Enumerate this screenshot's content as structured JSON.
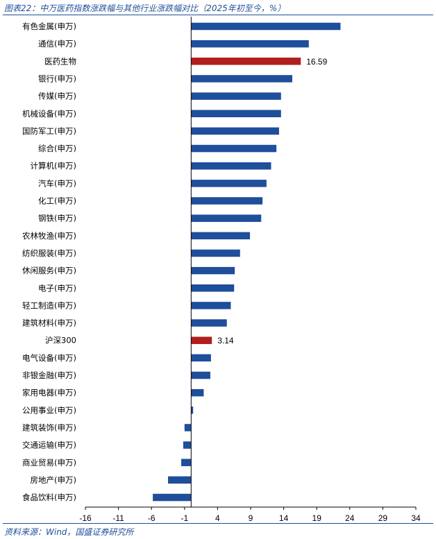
{
  "header": {
    "title": "图表22：中万医药指数涨跌幅与其他行业涨跌幅对比（2025年初至今，%）"
  },
  "footer": {
    "source": "资料来源：Wind，国盛证券研究所"
  },
  "chart_data": {
    "type": "bar",
    "orientation": "horizontal",
    "title": "图表22：中万医药指数涨跌幅与其他行业涨跌幅对比（2025年初至今，%）",
    "xlim": [
      -16,
      34
    ],
    "xticks": [
      -16,
      -11,
      -6,
      -1,
      4,
      9,
      14,
      19,
      24,
      29,
      34
    ],
    "grid": false,
    "legend": "none",
    "colors": {
      "default": "#1f4e9a",
      "highlight": "#b01e1e"
    },
    "categories": [
      "有色金属(申万)",
      "通信(申万)",
      "医药生物",
      "银行(申万)",
      "传媒(申万)",
      "机械设备(申万)",
      "国防军工(申万)",
      "综合(申万)",
      "计算机(申万)",
      "汽车(申万)",
      "化工(申万)",
      "钢铁(申万)",
      "农林牧渔(申万)",
      "纺织服装(申万)",
      "休闲服务(申万)",
      "电子(申万)",
      "轻工制造(申万)",
      "建筑材料(申万)",
      "沪深300",
      "电气设备(申万)",
      "非银金融(申万)",
      "家用电器(申万)",
      "公用事业(申万)",
      "建筑装饰(申万)",
      "交通运输(申万)",
      "商业贸易(申万)",
      "房地产(申万)",
      "食品饮料(申万)"
    ],
    "values": [
      22.6,
      17.8,
      16.59,
      15.3,
      13.6,
      13.6,
      13.3,
      12.9,
      12.1,
      11.4,
      10.8,
      10.6,
      8.9,
      7.4,
      6.6,
      6.5,
      6.0,
      5.4,
      3.14,
      3.0,
      2.9,
      1.9,
      0.3,
      -1.0,
      -1.2,
      -1.5,
      -3.5,
      -5.8
    ],
    "highlight": [
      "医药生物",
      "沪深300"
    ],
    "data_labels": [
      {
        "category": "医药生物",
        "text": "16.59"
      },
      {
        "category": "沪深300",
        "text": "3.14"
      }
    ]
  }
}
